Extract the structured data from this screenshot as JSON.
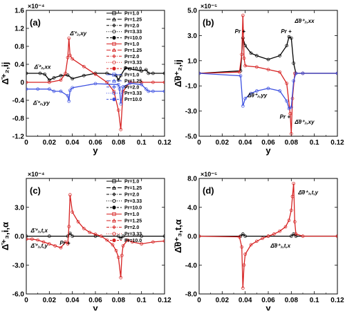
{
  "chart_data": [
    {
      "type": "line",
      "panel_label": "(a)",
      "ylabel": "Δ̄⁺₂,ij",
      "xlabel": "y",
      "exponent": "×10⁻⁴",
      "xlim": [
        0,
        0.12
      ],
      "ylim": [
        -1.2,
        1.6
      ],
      "xticks": [
        0,
        0.02,
        0.04,
        0.06,
        0.08,
        0.1,
        0.12
      ],
      "xtick_labels": [
        "0",
        "0.02",
        "0.04",
        "0.06",
        "0.08",
        "0.1",
        "0.12"
      ],
      "yticks": [
        -1.2,
        -0.8,
        -0.4,
        0,
        0.4,
        0.8,
        1.2,
        1.6
      ],
      "ytick_labels": [
        "-1.2",
        "-0.8",
        "-0.4",
        "0",
        "0.4",
        "0.8",
        "1.2",
        "1.6"
      ],
      "legend": {
        "position": "top-right",
        "entries": [
          {
            "label": "Pr=1.0",
            "color": "#000000",
            "dash": "",
            "marker": "square"
          },
          {
            "label": "Pr=1.25",
            "color": "#000000",
            "dash": "6,2",
            "marker": "triangle"
          },
          {
            "label": "Pr=2.0",
            "color": "#000000",
            "dash": "4,2,1,2",
            "marker": "diamond"
          },
          {
            "label": "Pr=3.33",
            "color": "#000000",
            "dash": "1,2",
            "marker": "circle"
          },
          {
            "label": "Pr=10.0",
            "color": "#000000",
            "dash": "3,2",
            "marker": "circle-filled"
          },
          {
            "label": "Pr=1.0",
            "color": "#d62020",
            "dash": "",
            "marker": "square"
          },
          {
            "label": "Pr=1.25",
            "color": "#d62020",
            "dash": "6,2",
            "marker": "triangle"
          },
          {
            "label": "Pr=2.0",
            "color": "#d62020",
            "dash": "4,2,1,2",
            "marker": "diamond"
          },
          {
            "label": "Pr=3.33",
            "color": "#d62020",
            "dash": "1,2",
            "marker": "circle"
          },
          {
            "label": "Pr=10.0",
            "color": "#d62020",
            "dash": "3,2",
            "marker": "circle-filled"
          },
          {
            "label": "Pr=1.0",
            "color": "#3b4fe0",
            "dash": "",
            "marker": "square"
          },
          {
            "label": "Pr=1.25",
            "color": "#3b4fe0",
            "dash": "6,2",
            "marker": "triangle"
          },
          {
            "label": "Pr=2.0",
            "color": "#3b4fe0",
            "dash": "4,2,1,2",
            "marker": "diamond"
          },
          {
            "label": "Pr=3.33",
            "color": "#3b4fe0",
            "dash": "1,2",
            "marker": "circle"
          },
          {
            "label": "Pr=10.0",
            "color": "#3b4fe0",
            "dash": "3,2",
            "marker": "circle-filled"
          }
        ]
      },
      "series": [
        {
          "color": "#000000",
          "x": [
            0.0,
            0.012,
            0.016,
            0.02,
            0.024,
            0.03,
            0.036,
            0.04,
            0.05,
            0.06,
            0.07,
            0.078,
            0.08,
            0.082,
            0.086,
            0.09,
            0.1,
            0.104,
            0.106,
            0.11,
            0.12
          ],
          "y": [
            0.2,
            0.2,
            0.18,
            0.05,
            0.1,
            0.15,
            0.16,
            0.08,
            0.15,
            0.2,
            0.2,
            0.15,
            0.05,
            0.15,
            0.32,
            0.3,
            0.25,
            0.28,
            0.2,
            0.2,
            0.2
          ]
        },
        {
          "color": "#d62020",
          "x": [
            0.0,
            0.02,
            0.03,
            0.034,
            0.036,
            0.037,
            0.038,
            0.04,
            0.05,
            0.06,
            0.07,
            0.076,
            0.08,
            0.082,
            0.084,
            0.09,
            0.1,
            0.11,
            0.12
          ],
          "y": [
            0.0,
            0.0,
            0.05,
            0.2,
            0.55,
            0.98,
            0.6,
            0.52,
            0.35,
            0.18,
            0.0,
            -0.2,
            -0.62,
            -1.05,
            -0.2,
            0.0,
            0.0,
            0.0,
            0.0
          ]
        },
        {
          "color": "#3b4fe0",
          "x": [
            0.0,
            0.01,
            0.02,
            0.024,
            0.03,
            0.036,
            0.037,
            0.038,
            0.04,
            0.06,
            0.08,
            0.081,
            0.082,
            0.084,
            0.09,
            0.1,
            0.104,
            0.106,
            0.11,
            0.12
          ],
          "y": [
            -0.15,
            -0.15,
            -0.15,
            -0.2,
            -0.2,
            -0.3,
            -0.42,
            -0.18,
            -0.12,
            -0.03,
            -0.05,
            -0.15,
            -0.48,
            -0.1,
            -0.02,
            -0.05,
            -0.15,
            -0.2,
            -0.2,
            -0.2
          ]
        }
      ],
      "annotations": [
        {
          "text": "Δ̄⁺₂,xx",
          "x": 0.007,
          "y": 0.3,
          "color": "#000000"
        },
        {
          "text": "Δ̄⁺₂,xy",
          "x": 0.038,
          "y": 1.05,
          "color": "#d62020"
        },
        {
          "text": "Δ̄⁺₂,yy",
          "x": 0.006,
          "y": -0.5,
          "color": "#3b4fe0"
        }
      ]
    },
    {
      "type": "line",
      "panel_label": "(b)",
      "ylabel": "Δ̄θ⁺₂,ij",
      "xlabel": "y",
      "exponent": "×10⁻⁵",
      "xlim": [
        0,
        0.12
      ],
      "ylim": [
        -5.0,
        5.0
      ],
      "xticks": [
        0,
        0.02,
        0.04,
        0.06,
        0.08,
        0.1,
        0.12
      ],
      "xtick_labels": [
        "0",
        "0.02",
        "0.04",
        "0.06",
        "0.08",
        "0.1",
        "0.12"
      ],
      "yticks": [
        -5.0,
        -3.0,
        -1.0,
        1.0,
        3.0,
        5.0
      ],
      "ytick_labels": [
        "-5.0",
        "-3.0",
        "-1.0",
        "1.0",
        "3.0",
        "5.0"
      ],
      "series": [
        {
          "color": "#000000",
          "x": [
            0.0,
            0.036,
            0.038,
            0.04,
            0.045,
            0.05,
            0.06,
            0.07,
            0.076,
            0.078,
            0.08,
            0.082,
            0.084,
            0.09,
            0.12
          ],
          "y": [
            0.0,
            0.2,
            2.8,
            2.2,
            1.6,
            1.4,
            1.1,
            1.4,
            2.2,
            2.9,
            2.8,
            0.8,
            0.0,
            0.0,
            0.0
          ]
        },
        {
          "color": "#d62020",
          "x": [
            0.0,
            0.035,
            0.037,
            0.038,
            0.039,
            0.04,
            0.05,
            0.06,
            0.07,
            0.076,
            0.079,
            0.08,
            0.081,
            0.083,
            0.09,
            0.12
          ],
          "y": [
            0.0,
            0.1,
            1.5,
            4.6,
            1.2,
            0.6,
            0.5,
            0.3,
            0.1,
            -0.8,
            -3.2,
            -4.8,
            -2.0,
            0.0,
            0.0,
            0.0
          ]
        },
        {
          "color": "#3b4fe0",
          "x": [
            0.0,
            0.036,
            0.038,
            0.04,
            0.045,
            0.05,
            0.06,
            0.07,
            0.076,
            0.078,
            0.08,
            0.082,
            0.084,
            0.09,
            0.12
          ],
          "y": [
            0.0,
            -0.2,
            -2.6,
            -2.0,
            -1.6,
            -1.4,
            -1.2,
            -1.4,
            -2.2,
            -2.8,
            -2.7,
            -0.6,
            0.0,
            0.0,
            0.0
          ]
        }
      ],
      "annotations": [
        {
          "text": "Pr +",
          "x": 0.031,
          "y": 3.2,
          "color": "#d62020"
        },
        {
          "text": "Pr +",
          "x": 0.071,
          "y": 3.2,
          "color": "#000000"
        },
        {
          "text": "Δ̄θ⁺₂,xx",
          "x": 0.083,
          "y": 4.0,
          "color": "#000000"
        },
        {
          "text": "Δ̄θ⁺₂,yy",
          "x": 0.042,
          "y": -1.9,
          "color": "#3b4fe0"
        },
        {
          "text": "Pr +",
          "x": 0.07,
          "y": -3.6,
          "color": "#3b4fe0"
        },
        {
          "text": "Δ̄θ⁺₂,xy",
          "x": 0.083,
          "y": -4.0,
          "color": "#d62020"
        }
      ]
    },
    {
      "type": "line",
      "panel_label": "(c)",
      "ylabel": "Δ̄⁺₃,i,α",
      "xlabel": "y",
      "exponent": "×10⁻⁴",
      "xlim": [
        0,
        0.12
      ],
      "ylim": [
        -6.0,
        6.0
      ],
      "xticks": [
        0,
        0.02,
        0.04,
        0.06,
        0.08,
        0.1,
        0.12
      ],
      "xtick_labels": [
        "0",
        "0.02",
        "0.04",
        "0.06",
        "0.08",
        "0.1",
        "0.12"
      ],
      "yticks": [
        -6.0,
        -3.0,
        0.0,
        3.0
      ],
      "ytick_labels": [
        "-6.0",
        "-3.0",
        "0.0",
        "3.0"
      ],
      "legend": {
        "position": "top-right",
        "entries": [
          {
            "label": "Pr=1.0",
            "color": "#000000",
            "dash": "",
            "marker": "square"
          },
          {
            "label": "Pr=1.25",
            "color": "#000000",
            "dash": "6,2",
            "marker": "triangle"
          },
          {
            "label": "Pr=2.0",
            "color": "#000000",
            "dash": "4,2,1,2",
            "marker": "diamond"
          },
          {
            "label": "Pr=3.33",
            "color": "#000000",
            "dash": "1,2",
            "marker": "circle"
          },
          {
            "label": "Pr=10.0",
            "color": "#000000",
            "dash": "3,2",
            "marker": "circle-filled"
          },
          {
            "label": "Pr=1.0",
            "color": "#d62020",
            "dash": "",
            "marker": "square"
          },
          {
            "label": "Pr=1.25",
            "color": "#d62020",
            "dash": "6,2",
            "marker": "triangle"
          },
          {
            "label": "Pr=2.0",
            "color": "#d62020",
            "dash": "4,2,1,2",
            "marker": "diamond"
          },
          {
            "label": "Pr=3.33",
            "color": "#d62020",
            "dash": "1,2",
            "marker": "circle"
          },
          {
            "label": "Pr=10.0",
            "color": "#d62020",
            "dash": "3,2",
            "marker": "circle-filled"
          }
        ]
      },
      "series": [
        {
          "color": "#000000",
          "x": [
            0.0,
            0.02,
            0.036,
            0.038,
            0.04,
            0.06,
            0.08,
            0.082,
            0.084,
            0.1,
            0.12
          ],
          "y": [
            0.0,
            0.0,
            0.0,
            0.3,
            0.0,
            0.0,
            0.0,
            -0.2,
            0.0,
            0.0,
            0.0
          ]
        },
        {
          "color": "#d62020",
          "x": [
            0.0,
            0.005,
            0.01,
            0.015,
            0.02,
            0.025,
            0.03,
            0.034,
            0.036,
            0.037,
            0.038,
            0.04,
            0.045,
            0.05,
            0.055,
            0.06,
            0.065,
            0.07,
            0.075,
            0.078,
            0.08,
            0.082,
            0.083,
            0.084,
            0.088,
            0.092,
            0.1,
            0.11,
            0.12
          ],
          "y": [
            -0.3,
            -0.3,
            -0.4,
            -0.6,
            -0.8,
            -1.0,
            -1.2,
            -0.6,
            -0.8,
            1.0,
            4.3,
            2.5,
            1.5,
            0.8,
            0.4,
            0.2,
            0.0,
            -0.4,
            -0.9,
            -1.5,
            -2.2,
            -4.3,
            -2.0,
            -1.0,
            -0.4,
            -0.6,
            -0.8,
            -0.6,
            -0.5
          ]
        }
      ],
      "annotations": [
        {
          "text": "Δ̄⁺₃,t,x",
          "x": 0.004,
          "y": 0.4,
          "color": "#000000"
        },
        {
          "text": "Δ̄⁺₃,t,y",
          "x": 0.004,
          "y": -1.2,
          "color": "#d62020"
        },
        {
          "text": "Pr +",
          "x": 0.029,
          "y": -0.9,
          "color": "#000000"
        }
      ]
    },
    {
      "type": "line",
      "panel_label": "(d)",
      "ylabel": "Δ̄θ⁺₃,t,α",
      "xlabel": "y",
      "exponent": "×10⁻⁵",
      "xlim": [
        0,
        0.12
      ],
      "ylim": [
        -8.0,
        8.0
      ],
      "xticks": [
        0,
        0.02,
        0.04,
        0.06,
        0.08,
        0.1,
        0.12
      ],
      "xtick_labels": [
        "0",
        "0.02",
        "0.04",
        "0.06",
        "0.08",
        "0.1",
        "0.12"
      ],
      "yticks": [
        -8.0,
        -4.0,
        0.0,
        4.0,
        8.0
      ],
      "ytick_labels": [
        "-8.0",
        "-4.0",
        "0.0",
        "4.0",
        "8.0"
      ],
      "series": [
        {
          "color": "#000000",
          "x": [
            0.0,
            0.036,
            0.038,
            0.04,
            0.06,
            0.08,
            0.082,
            0.084,
            0.12
          ],
          "y": [
            0.0,
            0.0,
            0.3,
            0.0,
            0.0,
            0.0,
            0.3,
            0.0,
            0.0
          ]
        },
        {
          "color": "#d62020",
          "x": [
            0.0,
            0.035,
            0.037,
            0.038,
            0.039,
            0.04,
            0.045,
            0.05,
            0.055,
            0.06,
            0.065,
            0.07,
            0.075,
            0.078,
            0.08,
            0.081,
            0.082,
            0.083,
            0.084,
            0.09,
            0.12
          ],
          "y": [
            0.0,
            -0.1,
            -1.5,
            -7.2,
            -4.0,
            -2.5,
            -1.2,
            -0.7,
            -0.3,
            0.0,
            0.3,
            0.7,
            1.3,
            2.2,
            3.6,
            5.5,
            7.3,
            2.0,
            0.3,
            0.0,
            0.0
          ]
        }
      ],
      "annotations": [
        {
          "text": "Δ̄θ⁺₃,t,y",
          "x": 0.086,
          "y": 5.8,
          "color": "#d62020"
        },
        {
          "text": "Δ̄θ⁺₃,t,x",
          "x": 0.062,
          "y": -1.6,
          "color": "#000000"
        }
      ]
    }
  ]
}
